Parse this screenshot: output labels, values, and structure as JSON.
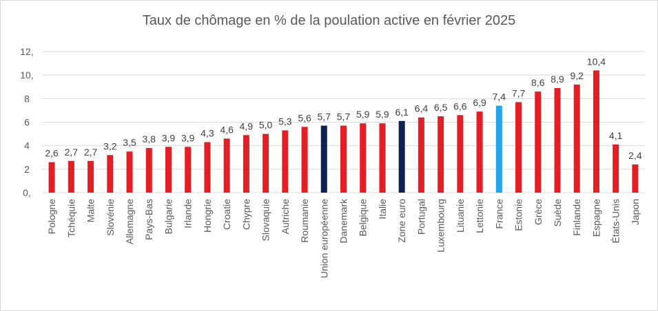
{
  "chart_data": {
    "type": "bar",
    "title": "Taux de chômage en % de la poulation active en février 2025",
    "xlabel": "",
    "ylabel": "",
    "ylim": [
      0,
      12
    ],
    "y_ticks": [
      "0,",
      "2",
      "4",
      "6",
      "8",
      "10,",
      "12,"
    ],
    "grid": true,
    "categories": [
      "Pologne",
      "Tchéquie",
      "Malte",
      "Slovénie",
      "Allemagne",
      "Pays-Bas",
      "Bulgarie",
      "Irlande",
      "Hongrie",
      "Croatie",
      "Chypre",
      "Slovaquie",
      "Autriche",
      "Roumanie",
      "Union européenne",
      "Danemark",
      "Belgique",
      "Italie",
      "Zone euro",
      "Portugal",
      "Luxembourg",
      "Lituanie",
      "Lettonie",
      "France",
      "Estonie",
      "Grèce",
      "Suède",
      "Finlande",
      "Espagne",
      "États-Unis",
      "Japon"
    ],
    "values": [
      2.6,
      2.7,
      2.7,
      3.2,
      3.5,
      3.8,
      3.9,
      3.9,
      4.3,
      4.6,
      4.9,
      5.0,
      5.3,
      5.6,
      5.7,
      5.7,
      5.9,
      5.9,
      6.1,
      6.4,
      6.5,
      6.6,
      6.9,
      7.4,
      7.7,
      8.6,
      8.9,
      9.2,
      10.4,
      4.1,
      2.4
    ],
    "value_labels": [
      "2,6",
      "2,7",
      "2,7",
      "3,2",
      "3,5",
      "3,8",
      "3,9",
      "3,9",
      "4,3",
      "4,6",
      "4,9",
      "5,0",
      "5,3",
      "5,6",
      "5,7",
      "5,7",
      "5,9",
      "5,9",
      "6,1",
      "6,4",
      "6,5",
      "6,6",
      "6,9",
      "7,4",
      "7,7",
      "8,6",
      "8,9",
      "9,2",
      "10,4",
      "4,1",
      "2,4"
    ],
    "bar_colors": [
      "#e31e24",
      "#e31e24",
      "#e31e24",
      "#e31e24",
      "#e31e24",
      "#e31e24",
      "#e31e24",
      "#e31e24",
      "#e31e24",
      "#e31e24",
      "#e31e24",
      "#e31e24",
      "#e31e24",
      "#e31e24",
      "#0f2150",
      "#e31e24",
      "#e31e24",
      "#e31e24",
      "#0f2150",
      "#e31e24",
      "#e31e24",
      "#e31e24",
      "#e31e24",
      "#22a7e8",
      "#e31e24",
      "#e31e24",
      "#e31e24",
      "#e31e24",
      "#e31e24",
      "#e31e24",
      "#e31e24"
    ]
  }
}
